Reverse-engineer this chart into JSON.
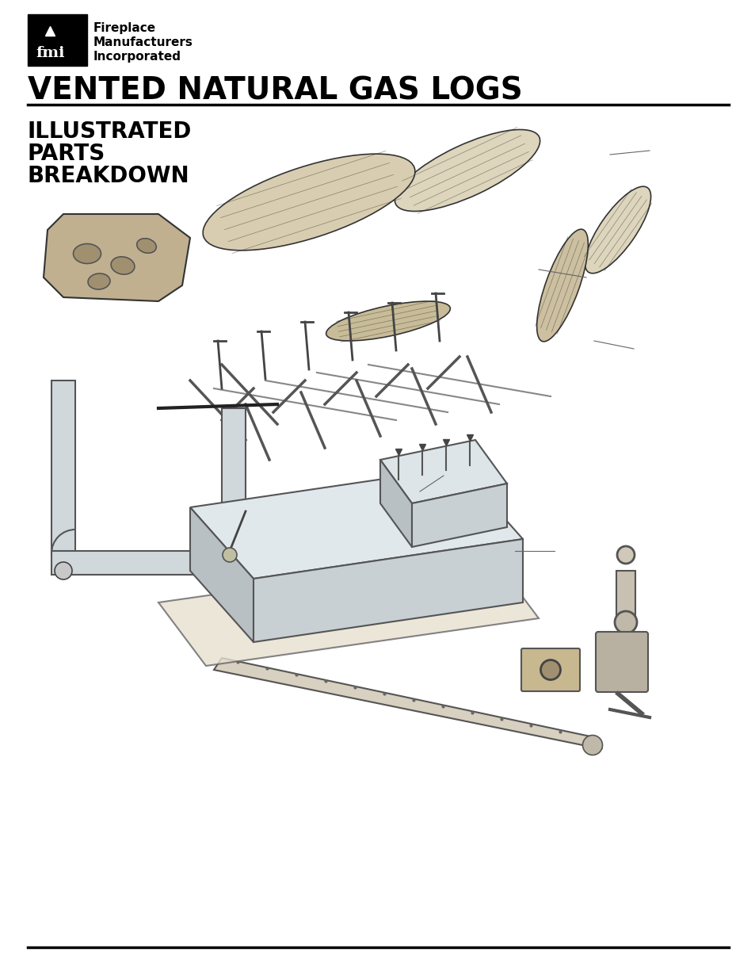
{
  "bg_color": "#ffffff",
  "title_main": "VENTED NATURAL GAS LOGS",
  "subtitle_lines": [
    "ILLUSTRATED",
    "PARTS",
    "BREAKDOWN"
  ],
  "company_name_lines": [
    "Fireplace",
    "Manufacturers",
    "Incorporated"
  ],
  "title_fontsize": 28,
  "subtitle_fontsize": 20,
  "company_fontsize": 11,
  "line_color": "#000000",
  "text_color": "#000000"
}
